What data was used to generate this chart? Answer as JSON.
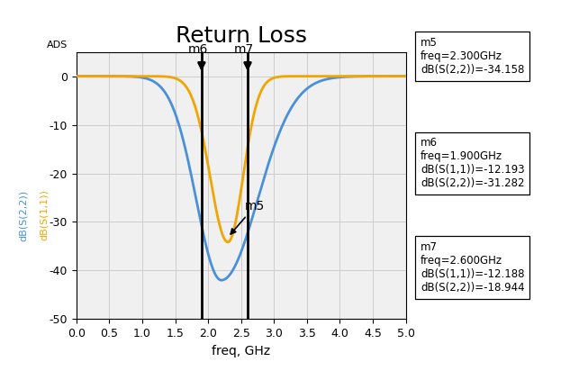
{
  "title": "Return Loss",
  "xlabel": "freq, GHz",
  "ylabel_blue": "dB(S(2,2))",
  "ylabel_orange": "dB(S(1,1))",
  "ads_label": "ADS",
  "xlim": [
    0.0,
    5.0
  ],
  "ylim": [
    -50,
    5
  ],
  "xticks": [
    0.0,
    0.5,
    1.0,
    1.5,
    2.0,
    2.5,
    3.0,
    3.5,
    4.0,
    4.5,
    5.0
  ],
  "yticks": [
    0,
    -10,
    -20,
    -30,
    -40,
    -50
  ],
  "color_blue": "#4a90d9",
  "color_orange": "#f0a500",
  "grid_color": "#cccccc",
  "background_color": "#f0f0f0",
  "marker_x_m6": 1.9,
  "marker_x_m7": 2.6,
  "s11_min_freq": 2.2,
  "s11_min_val": -42.0,
  "s22_min_freq": 2.3,
  "s22_min_val": -34.158,
  "m5_text": "m5\nfreq=2.300GHz\ndB(S(2,2))=-34.158",
  "m6_text": "m6\nfreq=1.900GHz\ndB(S(1,1))=-12.193\ndB(S(2,2))=-31.282",
  "m7_text": "m7\nfreq=2.600GHz\ndB(S(1,1))=-12.188\ndB(S(2,2))=-18.944"
}
